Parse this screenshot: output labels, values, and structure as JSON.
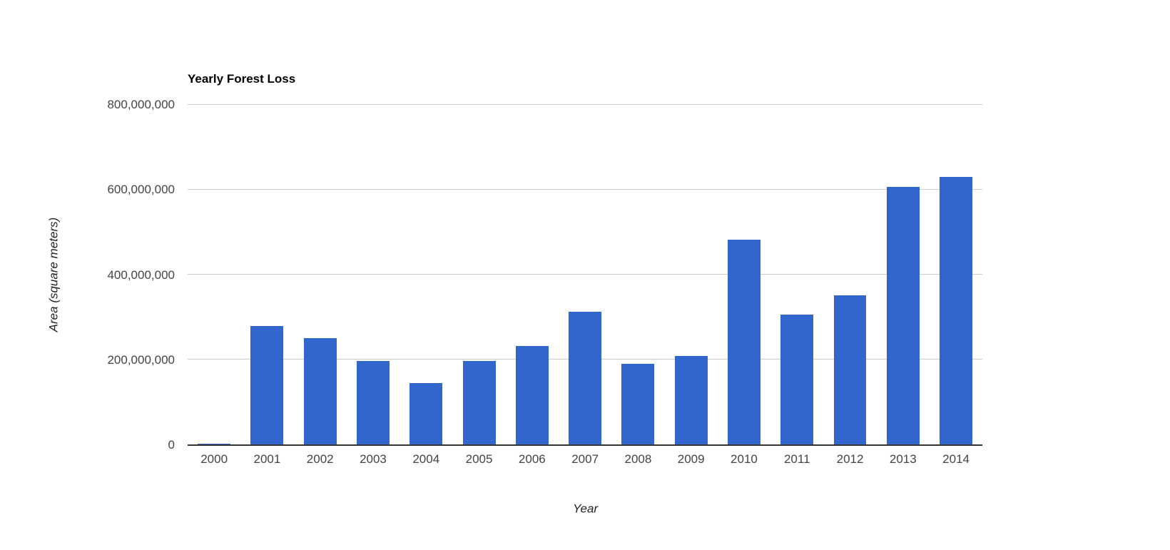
{
  "page": {
    "background": "#ffffff"
  },
  "chart_data": {
    "type": "bar",
    "title": "Yearly Forest Loss",
    "xlabel": "Year",
    "ylabel": "Area (square meters)",
    "categories": [
      "2000",
      "2001",
      "2002",
      "2003",
      "2004",
      "2005",
      "2006",
      "2007",
      "2008",
      "2009",
      "2010",
      "2011",
      "2012",
      "2013",
      "2014"
    ],
    "values": [
      1600000,
      279000000,
      251000000,
      196000000,
      144000000,
      196000000,
      232000000,
      312000000,
      189000000,
      208000000,
      482000000,
      305000000,
      351000000,
      605000000,
      629000000
    ],
    "ylim": [
      0,
      800000000
    ],
    "yticks": [
      0,
      200000000,
      400000000,
      600000000,
      800000000
    ],
    "ytick_labels": [
      "0",
      "200,000,000",
      "400,000,000",
      "600,000,000",
      "800,000,000"
    ],
    "grid": true,
    "legend": "none",
    "colors": {
      "bar": "#3366cc",
      "gridline": "#cccccc",
      "baseline": "#333333",
      "tick_label": "#444444",
      "title": "#000000",
      "axis_title": "#222222"
    }
  }
}
